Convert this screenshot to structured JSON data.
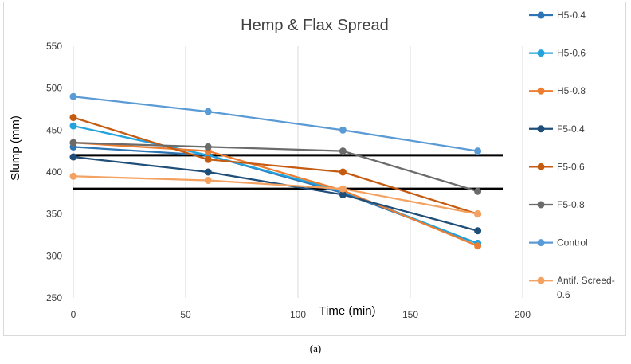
{
  "chart_data": {
    "type": "line",
    "title": "Hemp & Flax Spread",
    "xlabel": "Time (min)",
    "ylabel": "Slump (mm)",
    "xlim": [
      0,
      200
    ],
    "ylim": [
      250,
      550
    ],
    "xticks": [
      0,
      50,
      100,
      150,
      200
    ],
    "yticks": [
      250,
      300,
      350,
      400,
      450,
      500,
      550
    ],
    "grid": "vertical",
    "legend_position": "right",
    "series": [
      {
        "name": "H5-0.4",
        "color": "#2e75b6",
        "x": [
          0,
          60,
          120,
          180
        ],
        "y": [
          430,
          420,
          375,
          315
        ]
      },
      {
        "name": "H5-0.6",
        "color": "#23a3dc",
        "x": [
          0,
          60,
          120,
          180
        ],
        "y": [
          455,
          420,
          377,
          315
        ]
      },
      {
        "name": "H5-0.8",
        "color": "#ed7d31",
        "x": [
          0,
          60,
          120,
          180
        ],
        "y": [
          435,
          425,
          378,
          312
        ]
      },
      {
        "name": "F5-0.4",
        "color": "#1f4e79",
        "x": [
          0,
          60,
          120,
          180
        ],
        "y": [
          418,
          400,
          373,
          330
        ]
      },
      {
        "name": "F5-0.6",
        "color": "#c55a11",
        "x": [
          0,
          60,
          120,
          180
        ],
        "y": [
          465,
          415,
          400,
          350
        ]
      },
      {
        "name": "F5-0.8",
        "color": "#6b6b6b",
        "x": [
          0,
          60,
          120,
          180
        ],
        "y": [
          435,
          430,
          425,
          377
        ]
      },
      {
        "name": "Control",
        "color": "#5b9bd5",
        "x": [
          0,
          60,
          120,
          180
        ],
        "y": [
          490,
          472,
          450,
          425
        ]
      },
      {
        "name": "Antif. Screed-0.6",
        "color": "#f4a261",
        "x": [
          0,
          60,
          120,
          180
        ],
        "y": [
          395,
          390,
          380,
          350
        ]
      }
    ],
    "reference_lines": [
      {
        "name": "upper-limit",
        "y": 420,
        "color": "#000000"
      },
      {
        "name": "lower-limit",
        "y": 380,
        "color": "#000000"
      }
    ]
  },
  "caption": "(a)"
}
